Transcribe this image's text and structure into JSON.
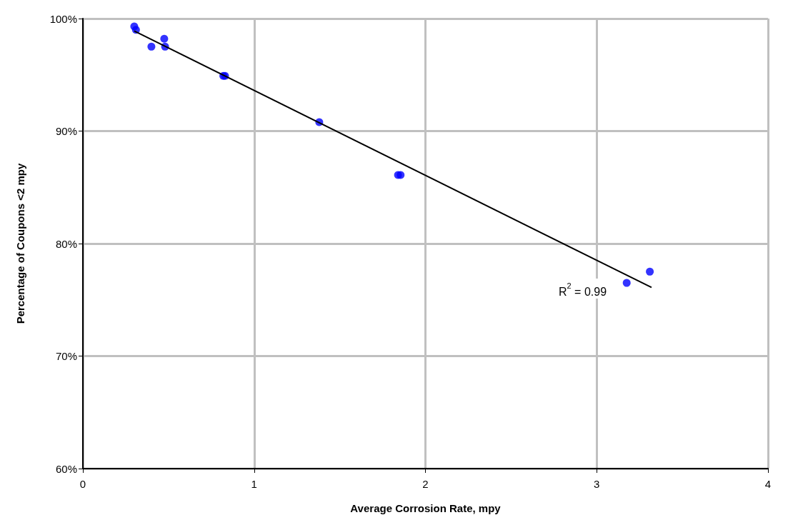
{
  "chart_data": {
    "type": "scatter",
    "xlabel": "Average Corrosion Rate, mpy",
    "ylabel": "Percentage of Coupons <2 mpy",
    "x": [
      0.3,
      0.31,
      0.4,
      0.475,
      0.48,
      0.82,
      0.83,
      1.38,
      1.84,
      1.855,
      3.175,
      3.31
    ],
    "series": [
      {
        "color": "#0000ff",
        "values": [
          99.3,
          99.0,
          97.5,
          98.2,
          97.5,
          94.9,
          94.9,
          90.8,
          86.1,
          86.1,
          76.5,
          77.5
        ]
      },
      {
        "type": "line",
        "color": "#000000",
        "x": [
          0.3,
          3.32
        ],
        "values": [
          98.9,
          76.1
        ],
        "marker": "none"
      }
    ],
    "xlim": [
      0,
      4
    ],
    "xticks": [
      0,
      1,
      2,
      3,
      4
    ],
    "ylim": [
      60,
      100
    ],
    "yticks": [
      {
        "value": 60,
        "label": "60%"
      },
      {
        "value": 70,
        "label": "70%"
      },
      {
        "value": 80,
        "label": "80%"
      },
      {
        "value": 90,
        "label": "90%"
      },
      {
        "value": 100,
        "label": "100%"
      }
    ],
    "grid": true,
    "marker": "circle",
    "annotations": [
      "R$^{2}$ = 0.99"
    ]
  }
}
